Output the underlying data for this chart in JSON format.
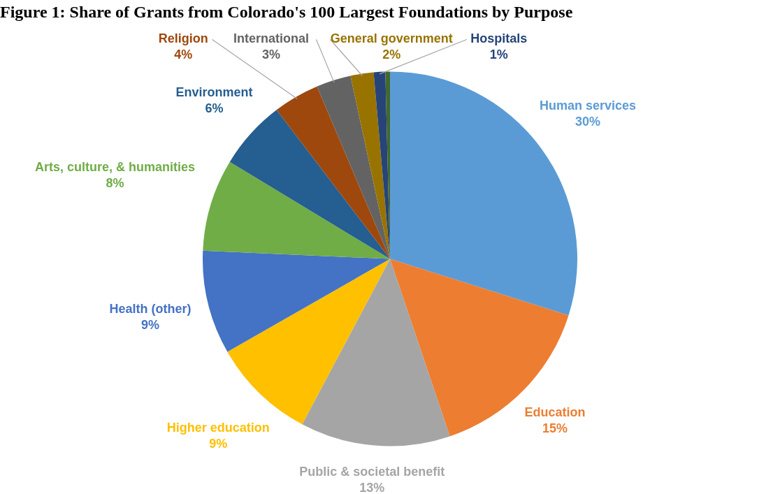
{
  "chart_data": {
    "type": "pie",
    "title": "Figure 1: Share of Grants from Colorado's 100 Largest Foundations by Purpose",
    "categories": [
      "Human services",
      "Education",
      "Public & societal benefit",
      "Higher education",
      "Health (other)",
      "Arts, culture, & humanities",
      "Environment",
      "Religion",
      "International",
      "General government",
      "Hospitals",
      null
    ],
    "values": [
      30,
      15,
      13,
      9,
      9,
      8,
      6,
      4,
      3,
      2,
      1,
      0.4
    ],
    "colors": [
      "#5b9bd5",
      "#ed7d31",
      "#a5a5a5",
      "#ffc000",
      "#4472c4",
      "#70ad47",
      "#255e91",
      "#9e480e",
      "#636363",
      "#997300",
      "#264478",
      "#43682b"
    ],
    "value_labels": [
      "30%",
      "15%",
      "13%",
      "9%",
      "9%",
      "8%",
      "6%",
      "4%",
      "3%",
      "2%",
      "1%",
      null
    ]
  }
}
